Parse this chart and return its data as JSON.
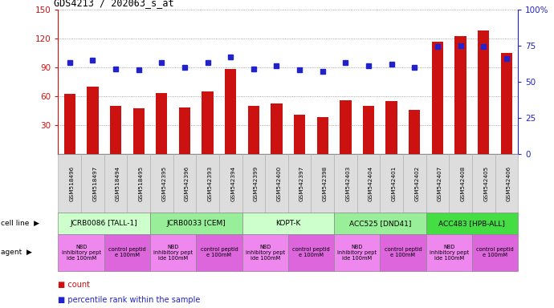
{
  "title": "GDS4213 / 202063_s_at",
  "samples": [
    "GSM518496",
    "GSM518497",
    "GSM518494",
    "GSM518495",
    "GSM542395",
    "GSM542396",
    "GSM542393",
    "GSM542394",
    "GSM542399",
    "GSM542400",
    "GSM542397",
    "GSM542398",
    "GSM542403",
    "GSM542404",
    "GSM542401",
    "GSM542402",
    "GSM542407",
    "GSM542408",
    "GSM542405",
    "GSM542406"
  ],
  "counts": [
    62,
    70,
    50,
    47,
    63,
    48,
    65,
    88,
    50,
    52,
    41,
    38,
    56,
    50,
    55,
    46,
    116,
    122,
    128,
    105
  ],
  "percentiles": [
    63,
    65,
    59,
    58,
    63,
    60,
    63,
    67,
    59,
    61,
    58,
    57,
    63,
    61,
    62,
    60,
    74,
    75,
    74,
    66
  ],
  "cell_lines": [
    {
      "label": "JCRB0086 [TALL-1]",
      "start": 0,
      "end": 4,
      "color": "#ccffcc"
    },
    {
      "label": "JCRB0033 [CEM]",
      "start": 4,
      "end": 8,
      "color": "#99ee99"
    },
    {
      "label": "KOPT-K",
      "start": 8,
      "end": 12,
      "color": "#ccffcc"
    },
    {
      "label": "ACC525 [DND41]",
      "start": 12,
      "end": 16,
      "color": "#99ee99"
    },
    {
      "label": "ACC483 [HPB-ALL]",
      "start": 16,
      "end": 20,
      "color": "#44dd44"
    }
  ],
  "agents": [
    {
      "label": "NBD\ninhibitory pept\nide 100mM",
      "start": 0,
      "end": 2,
      "color": "#ee88ee"
    },
    {
      "label": "control peptid\ne 100mM",
      "start": 2,
      "end": 4,
      "color": "#dd66dd"
    },
    {
      "label": "NBD\ninhibitory pept\nide 100mM",
      "start": 4,
      "end": 6,
      "color": "#ee88ee"
    },
    {
      "label": "control peptid\ne 100mM",
      "start": 6,
      "end": 8,
      "color": "#dd66dd"
    },
    {
      "label": "NBD\ninhibitory pept\nide 100mM",
      "start": 8,
      "end": 10,
      "color": "#ee88ee"
    },
    {
      "label": "control peptid\ne 100mM",
      "start": 10,
      "end": 12,
      "color": "#dd66dd"
    },
    {
      "label": "NBD\ninhibitory pept\nide 100mM",
      "start": 12,
      "end": 14,
      "color": "#ee88ee"
    },
    {
      "label": "control peptid\ne 100mM",
      "start": 14,
      "end": 16,
      "color": "#dd66dd"
    },
    {
      "label": "NBD\ninhibitory pept\nide 100mM",
      "start": 16,
      "end": 18,
      "color": "#ee88ee"
    },
    {
      "label": "control peptid\ne 100mM",
      "start": 18,
      "end": 20,
      "color": "#dd66dd"
    }
  ],
  "ylim_left": [
    0,
    150
  ],
  "ylim_right": [
    0,
    100
  ],
  "yticks_left": [
    30,
    60,
    90,
    120,
    150
  ],
  "yticks_right": [
    0,
    25,
    50,
    75,
    100
  ],
  "bar_color": "#cc1111",
  "dot_color": "#2222cc",
  "grid_color": "#888888",
  "bg_color": "#ffffff",
  "xtick_bg": "#dddddd"
}
